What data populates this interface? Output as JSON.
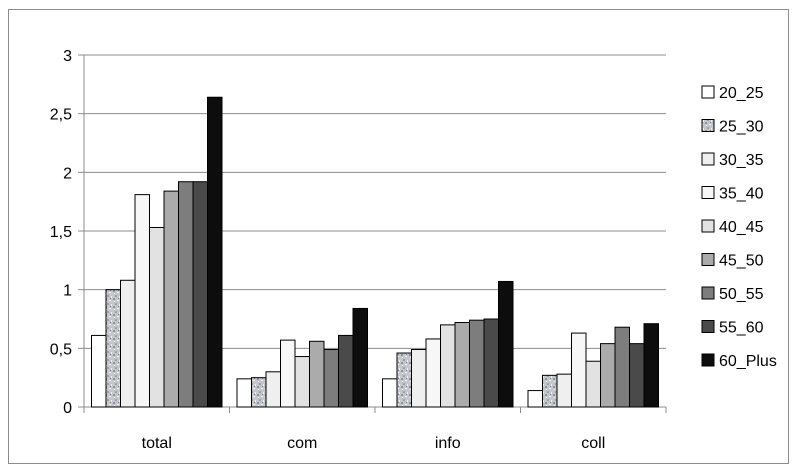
{
  "chart_data": {
    "type": "bar",
    "categories": [
      "total",
      "com",
      "info",
      "coll"
    ],
    "ylim": [
      0,
      3
    ],
    "yticks": [
      0,
      0.5,
      1,
      1.5,
      2,
      2.5,
      3
    ],
    "ytick_labels": [
      "0",
      "0,5",
      "1",
      "1,5",
      "2",
      "2,5",
      "3"
    ],
    "grid": true,
    "legend_position": "right",
    "series": [
      {
        "name": "20_25",
        "color": "#ffffff",
        "values": [
          0.61,
          0.24,
          0.24,
          0.14
        ]
      },
      {
        "name": "25_30",
        "color": "#b8bcc0",
        "pattern": "speckled",
        "values": [
          1.0,
          0.25,
          0.46,
          0.27
        ]
      },
      {
        "name": "30_35",
        "color": "#efefef",
        "values": [
          1.08,
          0.3,
          0.49,
          0.28
        ]
      },
      {
        "name": "35_40",
        "color": "#f7f7f7",
        "values": [
          1.81,
          0.57,
          0.58,
          0.63
        ]
      },
      {
        "name": "40_45",
        "color": "#e2e2e2",
        "values": [
          1.53,
          0.43,
          0.7,
          0.39
        ]
      },
      {
        "name": "45_50",
        "color": "#ababab",
        "values": [
          1.84,
          0.56,
          0.72,
          0.54
        ]
      },
      {
        "name": "50_55",
        "color": "#7d7d7d",
        "values": [
          1.92,
          0.49,
          0.74,
          0.68
        ]
      },
      {
        "name": "55_60",
        "color": "#4a4a4a",
        "values": [
          1.92,
          0.61,
          0.75,
          0.54
        ]
      },
      {
        "name": "60_Plus",
        "color": "#0d0d0d",
        "values": [
          2.64,
          0.84,
          1.07,
          0.71
        ]
      }
    ]
  }
}
